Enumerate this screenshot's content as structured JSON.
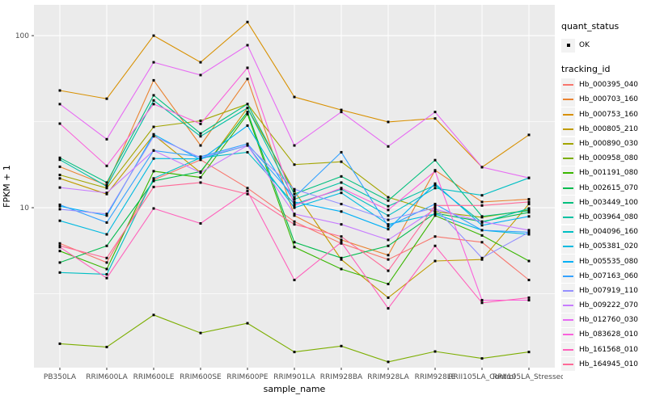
{
  "figure": {
    "background": "#ffffff",
    "panel_background": "#ebebeb",
    "grid_color": "#ffffff",
    "tick_label_color": "#4d4d4d",
    "point_color": "#000000"
  },
  "legend": {
    "quant_status_title": "quant_status",
    "quant_status_items": [
      {
        "label": "OK",
        "glyph": "black-square-point"
      }
    ],
    "tracking_id_title": "tracking_id"
  },
  "chart_data": {
    "type": "line",
    "title": "",
    "xlabel": "sample_name",
    "ylabel": "FPKM + 1",
    "yscale": "log10",
    "ylim": [
      1.176,
      151
    ],
    "yticks": [
      10,
      100
    ],
    "ytick_labels": [
      "10",
      "100"
    ],
    "yminor": [
      3.162,
      31.62
    ],
    "grid": "white major and minor, gray panel",
    "legend_position": "right",
    "points": "small black squares at every observation",
    "x_categories": [
      "PB350LA",
      "RRIM600LA",
      "RRIM600LE",
      "RRIM600SE",
      "RRIM600PE",
      "RRIM901LA",
      "RRIM928BA",
      "RRIM928LA",
      "RRIM928LE",
      "RRII105LA_Control",
      "RRII105LA_Stressed"
    ],
    "series": [
      {
        "name": "Hb_000395_040",
        "color": "#F8766D",
        "values": [
          6.2,
          4.8,
          14.5,
          19,
          13,
          8.3,
          6.2,
          5,
          6.8,
          6.3,
          3.8
        ]
      },
      {
        "name": "Hb_000703_160",
        "color": "#EA8331",
        "values": [
          17.3,
          13.5,
          55,
          23,
          56,
          9,
          6.5,
          5.3,
          16.5,
          10.8,
          11.2
        ]
      },
      {
        "name": "Hb_000753_160",
        "color": "#D89000",
        "values": [
          48,
          43,
          100,
          70,
          120,
          44,
          37,
          31.5,
          33,
          17.2,
          26.5
        ]
      },
      {
        "name": "Hb_000805_210",
        "color": "#C09B00",
        "values": [
          14.8,
          12,
          26.5,
          16,
          38,
          12.5,
          5,
          3,
          4.9,
          5,
          10.5
        ]
      },
      {
        "name": "Hb_000890_030",
        "color": "#A3A500",
        "values": [
          15.5,
          13,
          29.5,
          32,
          40,
          17.8,
          18.5,
          11.5,
          9.5,
          8.8,
          9.7
        ]
      },
      {
        "name": "Hb_000958_080",
        "color": "#7CAE00",
        "values": [
          1.62,
          1.55,
          2.38,
          1.87,
          2.13,
          1.45,
          1.57,
          1.27,
          1.46,
          1.33,
          1.45
        ]
      },
      {
        "name": "Hb_001191_080",
        "color": "#39B600",
        "values": [
          5.6,
          4.4,
          16.3,
          15,
          35,
          5.9,
          4.4,
          3.6,
          9,
          6.9,
          4.9
        ]
      },
      {
        "name": "Hb_002615_070",
        "color": "#00BB4E",
        "values": [
          4.8,
          6,
          14.3,
          16.2,
          36,
          6.3,
          5.1,
          6,
          9.3,
          8.3,
          9.4
        ]
      },
      {
        "name": "Hb_003449_100",
        "color": "#00BF7D",
        "values": [
          19.5,
          14,
          45,
          27,
          40,
          12,
          15.2,
          11,
          18.9,
          8.9,
          9.6
        ]
      },
      {
        "name": "Hb_003964_080",
        "color": "#00C1A3",
        "values": [
          19,
          13.3,
          42,
          26,
          38,
          11.2,
          14,
          10.2,
          13.5,
          8.2,
          9.9
        ]
      },
      {
        "name": "Hb_004096_160",
        "color": "#00BFC4",
        "values": [
          4.2,
          4.1,
          14.8,
          19.5,
          21,
          10.5,
          12.8,
          9,
          13,
          11.8,
          14.9
        ]
      },
      {
        "name": "Hb_005381_020",
        "color": "#00BAE0",
        "values": [
          8.4,
          7,
          19.3,
          19.2,
          23,
          10,
          12.2,
          8,
          9.2,
          7.4,
          7
        ]
      },
      {
        "name": "Hb_005535_080",
        "color": "#00B0F6",
        "values": [
          10.2,
          9,
          26.7,
          19,
          30,
          10.8,
          9.5,
          7.5,
          13.8,
          7.9,
          8.9
        ]
      },
      {
        "name": "Hb_007163_060",
        "color": "#35A2FF",
        "values": [
          10.4,
          8.2,
          21.5,
          19.8,
          23.5,
          11.5,
          21,
          7.8,
          10.5,
          7.4,
          7.2
        ]
      },
      {
        "name": "Hb_007919_110",
        "color": "#9590FF",
        "values": [
          9.8,
          9.2,
          26,
          19.5,
          23,
          12.8,
          10.5,
          8.5,
          10,
          5.1,
          7.2
        ]
      },
      {
        "name": "Hb_009222_070",
        "color": "#C77CFF",
        "values": [
          13.1,
          12.2,
          21.5,
          16,
          23,
          9.2,
          8,
          6.5,
          9.8,
          8.3,
          7.4
        ]
      },
      {
        "name": "Hb_012760_030",
        "color": "#E76BF3",
        "values": [
          40,
          25,
          70,
          59,
          88,
          23,
          36,
          22.7,
          36,
          17.2,
          14.9
        ]
      },
      {
        "name": "Hb_083628_010",
        "color": "#FA62DB",
        "values": [
          30.8,
          17.5,
          40,
          30.7,
          65,
          10.3,
          13,
          9.7,
          16.3,
          2.9,
          2.9
        ]
      },
      {
        "name": "Hb_161568_010",
        "color": "#FF62BC",
        "values": [
          5.9,
          3.9,
          9.9,
          8.1,
          12.5,
          3.8,
          6.3,
          2.6,
          6,
          2.8,
          3
        ]
      },
      {
        "name": "Hb_164945_010",
        "color": "#FF6A98",
        "values": [
          6,
          5.1,
          13.2,
          14,
          12,
          8,
          6.8,
          4.3,
          10.3,
          10.3,
          10.8
        ]
      }
    ]
  }
}
